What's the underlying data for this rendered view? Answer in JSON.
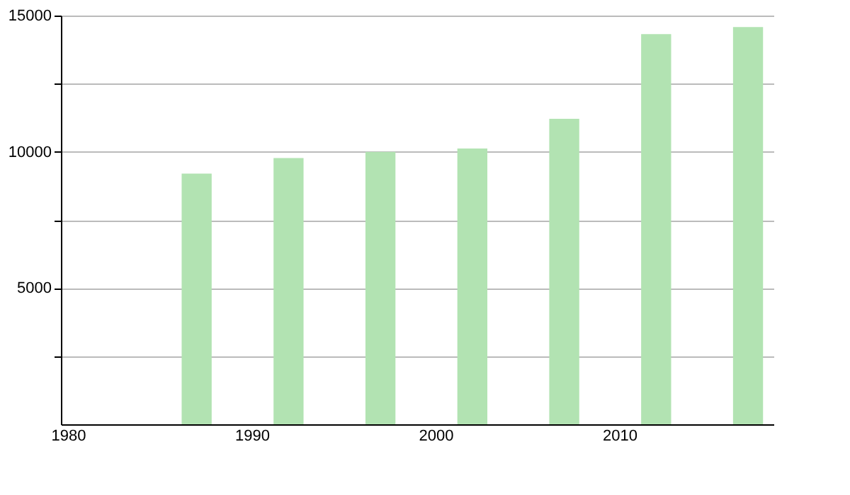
{
  "chart_data": {
    "type": "bar",
    "x": [
      1987,
      1992,
      1997,
      2002,
      2007,
      2012,
      2017
    ],
    "values": [
      9200,
      9770,
      10000,
      10120,
      11210,
      14320,
      14580
    ],
    "color": "#b2e3b2",
    "xlim": [
      1980,
      2018
    ],
    "xticks": [
      1980,
      1990,
      2000,
      2010
    ],
    "ylim": [
      0,
      15000
    ],
    "yticks": [
      {
        "value": 2500,
        "label": null
      },
      5000,
      {
        "value": 7500,
        "label": null
      },
      10000,
      {
        "value": 12500,
        "label": null
      },
      15000
    ],
    "grid": "y"
  }
}
